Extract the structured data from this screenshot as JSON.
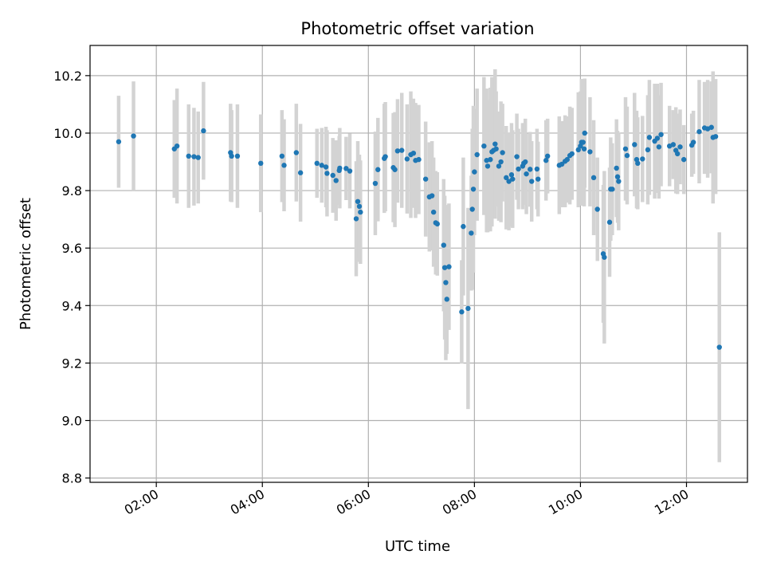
{
  "chart_data": {
    "type": "scatter",
    "title": "Photometric offset variation",
    "xlabel": "UTC time",
    "ylabel": "Photometric offset",
    "xlim_hours": [
      0.75,
      13.15
    ],
    "ylim": [
      8.785,
      10.305
    ],
    "x_ticks": [
      {
        "value": 2,
        "label": "02:00"
      },
      {
        "value": 4,
        "label": "04:00"
      },
      {
        "value": 6,
        "label": "06:00"
      },
      {
        "value": 8,
        "label": "08:00"
      },
      {
        "value": 10,
        "label": "10:00"
      },
      {
        "value": 12,
        "label": "12:00"
      }
    ],
    "y_ticks": [
      {
        "value": 8.8,
        "label": "8.8"
      },
      {
        "value": 9.0,
        "label": "9.0"
      },
      {
        "value": 9.2,
        "label": "9.2"
      },
      {
        "value": 9.4,
        "label": "9.4"
      },
      {
        "value": 9.6,
        "label": "9.6"
      },
      {
        "value": 9.8,
        "label": "9.8"
      },
      {
        "value": 10.0,
        "label": "10.0"
      },
      {
        "value": 10.2,
        "label": "10.2"
      }
    ],
    "grid": true,
    "marker_color": "#1f77b4",
    "errorbar_color": "#d3d3d3",
    "series": [
      {
        "name": "offset",
        "points": [
          [
            1.29,
            9.97,
            0.16
          ],
          [
            1.57,
            9.99,
            0.19
          ],
          [
            2.34,
            9.945,
            0.17
          ],
          [
            2.39,
            9.955,
            0.2
          ],
          [
            2.61,
            9.92,
            0.18
          ],
          [
            2.71,
            9.918,
            0.17
          ],
          [
            2.79,
            9.915,
            0.16
          ],
          [
            2.89,
            10.008,
            0.17
          ],
          [
            3.4,
            9.932,
            0.17
          ],
          [
            3.42,
            9.92,
            0.16
          ],
          [
            3.53,
            9.92,
            0.18
          ],
          [
            3.97,
            9.895,
            0.17
          ],
          [
            4.37,
            9.92,
            0.16
          ],
          [
            4.41,
            9.888,
            0.16
          ],
          [
            4.64,
            9.932,
            0.17
          ],
          [
            4.72,
            9.862,
            0.17
          ],
          [
            5.03,
            9.895,
            0.12
          ],
          [
            5.12,
            9.888,
            0.13
          ],
          [
            5.2,
            9.882,
            0.14
          ],
          [
            5.22,
            9.86,
            0.15
          ],
          [
            5.33,
            9.853,
            0.13
          ],
          [
            5.39,
            9.835,
            0.14
          ],
          [
            5.45,
            9.87,
            0.12
          ],
          [
            5.46,
            9.878,
            0.14
          ],
          [
            5.58,
            9.877,
            0.11
          ],
          [
            5.65,
            9.868,
            0.13
          ],
          [
            5.77,
            9.702,
            0.2
          ],
          [
            5.8,
            9.762,
            0.21
          ],
          [
            5.83,
            9.745,
            0.18
          ],
          [
            5.85,
            9.725,
            0.18
          ],
          [
            6.13,
            9.825,
            0.18
          ],
          [
            6.18,
            9.873,
            0.18
          ],
          [
            6.3,
            9.912,
            0.19
          ],
          [
            6.32,
            9.918,
            0.19
          ],
          [
            6.47,
            9.88,
            0.19
          ],
          [
            6.5,
            9.873,
            0.2
          ],
          [
            6.55,
            9.938,
            0.18
          ],
          [
            6.63,
            9.94,
            0.2
          ],
          [
            6.73,
            9.91,
            0.19
          ],
          [
            6.8,
            9.925,
            0.22
          ],
          [
            6.85,
            9.93,
            0.19
          ],
          [
            6.89,
            9.905,
            0.2
          ],
          [
            6.95,
            9.908,
            0.19
          ],
          [
            7.08,
            9.84,
            0.2
          ],
          [
            7.15,
            9.778,
            0.19
          ],
          [
            7.2,
            9.782,
            0.19
          ],
          [
            7.23,
            9.725,
            0.19
          ],
          [
            7.27,
            9.688,
            0.18
          ],
          [
            7.3,
            9.684,
            0.18
          ],
          [
            7.42,
            9.61,
            0.23
          ],
          [
            7.44,
            9.532,
            0.25
          ],
          [
            7.46,
            9.48,
            0.27
          ],
          [
            7.48,
            9.422,
            0.19
          ],
          [
            7.52,
            9.535,
            0.22
          ],
          [
            7.76,
            9.378,
            0.18
          ],
          [
            7.79,
            9.675,
            0.24
          ],
          [
            7.88,
            9.39,
            0.35
          ],
          [
            7.94,
            9.652,
            0.2
          ],
          [
            7.96,
            9.735,
            0.28
          ],
          [
            7.98,
            9.805,
            0.29
          ],
          [
            8.0,
            9.865,
            0.22
          ],
          [
            8.05,
            9.925,
            0.23
          ],
          [
            8.18,
            9.955,
            0.24
          ],
          [
            8.23,
            9.905,
            0.25
          ],
          [
            8.25,
            9.885,
            0.23
          ],
          [
            8.3,
            9.908,
            0.25
          ],
          [
            8.33,
            9.935,
            0.26
          ],
          [
            8.36,
            9.94,
            0.23
          ],
          [
            8.39,
            9.962,
            0.26
          ],
          [
            8.41,
            9.945,
            0.2
          ],
          [
            8.46,
            9.885,
            0.19
          ],
          [
            8.5,
            9.9,
            0.21
          ],
          [
            8.53,
            9.932,
            0.17
          ],
          [
            8.6,
            9.845,
            0.18
          ],
          [
            8.65,
            9.832,
            0.17
          ],
          [
            8.7,
            9.855,
            0.18
          ],
          [
            8.72,
            9.84,
            0.17
          ],
          [
            8.8,
            9.918,
            0.15
          ],
          [
            8.83,
            9.875,
            0.14
          ],
          [
            8.91,
            9.885,
            0.15
          ],
          [
            8.93,
            9.895,
            0.14
          ],
          [
            8.96,
            9.9,
            0.15
          ],
          [
            8.98,
            9.858,
            0.14
          ],
          [
            9.05,
            9.874,
            0.13
          ],
          [
            9.08,
            9.832,
            0.14
          ],
          [
            9.18,
            9.875,
            0.14
          ],
          [
            9.2,
            9.84,
            0.13
          ],
          [
            9.35,
            9.905,
            0.14
          ],
          [
            9.38,
            9.92,
            0.13
          ],
          [
            9.6,
            9.888,
            0.17
          ],
          [
            9.65,
            9.892,
            0.15
          ],
          [
            9.71,
            9.902,
            0.16
          ],
          [
            9.75,
            9.908,
            0.15
          ],
          [
            9.8,
            9.922,
            0.17
          ],
          [
            9.84,
            9.928,
            0.16
          ],
          [
            9.96,
            9.942,
            0.2
          ],
          [
            10.0,
            9.955,
            0.19
          ],
          [
            10.02,
            9.968,
            0.22
          ],
          [
            10.05,
            9.968,
            0.22
          ],
          [
            10.07,
            9.945,
            0.2
          ],
          [
            10.08,
            10.0,
            0.19
          ],
          [
            10.18,
            9.935,
            0.19
          ],
          [
            10.25,
            9.845,
            0.2
          ],
          [
            10.32,
            9.735,
            0.18
          ],
          [
            10.43,
            9.58,
            0.24
          ],
          [
            10.45,
            9.568,
            0.3
          ],
          [
            10.55,
            9.69,
            0.19
          ],
          [
            10.57,
            9.805,
            0.18
          ],
          [
            10.6,
            9.805,
            0.16
          ],
          [
            10.68,
            9.878,
            0.17
          ],
          [
            10.7,
            9.848,
            0.16
          ],
          [
            10.72,
            9.832,
            0.17
          ],
          [
            10.85,
            9.945,
            0.18
          ],
          [
            10.88,
            9.922,
            0.17
          ],
          [
            11.02,
            9.96,
            0.18
          ],
          [
            11.06,
            9.908,
            0.17
          ],
          [
            11.08,
            9.895,
            0.16
          ],
          [
            11.17,
            9.91,
            0.15
          ],
          [
            11.27,
            9.942,
            0.19
          ],
          [
            11.3,
            9.985,
            0.2
          ],
          [
            11.4,
            9.972,
            0.2
          ],
          [
            11.45,
            9.982,
            0.19
          ],
          [
            11.48,
            9.952,
            0.18
          ],
          [
            11.52,
            9.995,
            0.18
          ],
          [
            11.68,
            9.955,
            0.14
          ],
          [
            11.75,
            9.96,
            0.12
          ],
          [
            11.8,
            9.94,
            0.15
          ],
          [
            11.83,
            9.928,
            0.14
          ],
          [
            11.88,
            9.952,
            0.13
          ],
          [
            11.95,
            9.908,
            0.12
          ],
          [
            12.1,
            9.958,
            0.11
          ],
          [
            12.13,
            9.968,
            0.11
          ],
          [
            12.24,
            10.005,
            0.18
          ],
          [
            12.34,
            10.018,
            0.16
          ],
          [
            12.4,
            10.015,
            0.17
          ],
          [
            12.47,
            10.02,
            0.16
          ],
          [
            12.5,
            9.985,
            0.23
          ],
          [
            12.55,
            9.988,
            0.2
          ],
          [
            12.62,
            9.255,
            0.4
          ]
        ]
      }
    ]
  }
}
